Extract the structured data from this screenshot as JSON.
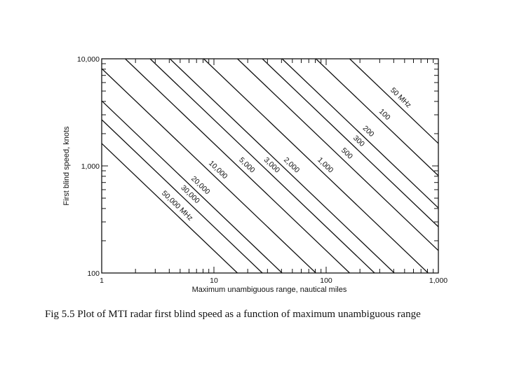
{
  "caption": "Fig 5.5 Plot of MTI radar first blind speed as a function of maximum unambiguous range",
  "chart_data": {
    "type": "line",
    "title": "",
    "xlabel": "Maximum unambiguous range, nautical miles",
    "ylabel": "First blind speed, knots",
    "xscale": "log",
    "yscale": "log",
    "xlim": [
      1,
      1000
    ],
    "ylim": [
      100,
      10000
    ],
    "xticks": [
      1,
      10,
      100,
      1000
    ],
    "xtick_labels": [
      "1",
      "10",
      "100",
      "1,000"
    ],
    "yticks": [
      100,
      1000,
      10000
    ],
    "ytick_labels": [
      "100",
      "1,000",
      "10,000"
    ],
    "grid": false,
    "series": [
      {
        "name": "50 MHz",
        "freq_mhz": 50
      },
      {
        "name": "100",
        "freq_mhz": 100
      },
      {
        "name": "200",
        "freq_mhz": 200
      },
      {
        "name": "300",
        "freq_mhz": 300
      },
      {
        "name": "500",
        "freq_mhz": 500
      },
      {
        "name": "1,000",
        "freq_mhz": 1000
      },
      {
        "name": "2,000",
        "freq_mhz": 2000
      },
      {
        "name": "3,000",
        "freq_mhz": 3000
      },
      {
        "name": "5,000",
        "freq_mhz": 5000
      },
      {
        "name": "10,000",
        "freq_mhz": 10000
      },
      {
        "name": "20,000",
        "freq_mhz": 20000
      },
      {
        "name": "30,000",
        "freq_mhz": 30000
      },
      {
        "name": "50,000 MHz",
        "freq_mhz": 50000
      }
    ]
  }
}
